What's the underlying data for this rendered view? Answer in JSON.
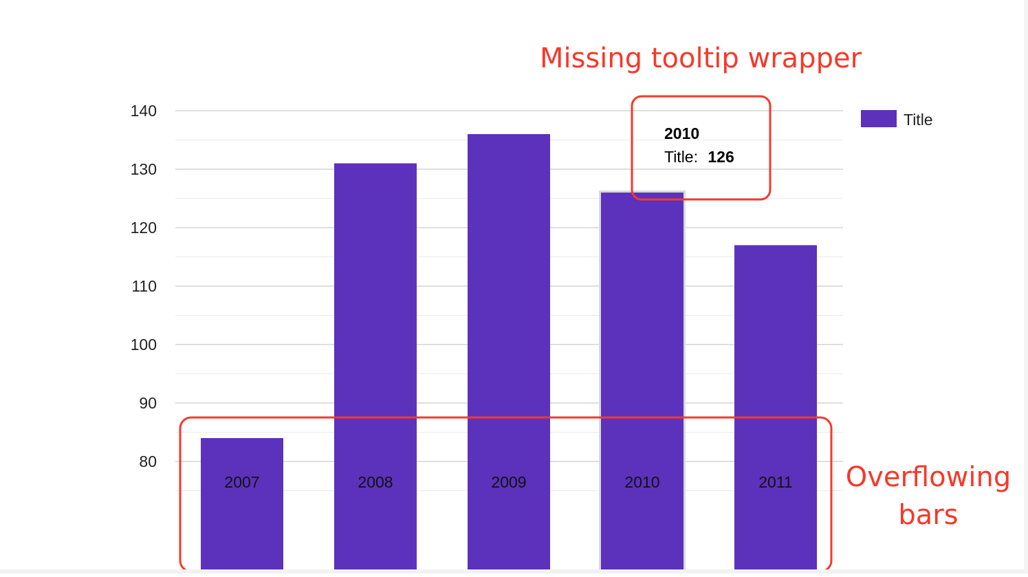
{
  "chart_data": {
    "type": "bar",
    "categories": [
      "2007",
      "2008",
      "2009",
      "2010",
      "2011"
    ],
    "series": [
      {
        "name": "Title",
        "values": [
          84,
          131,
          136,
          126,
          117
        ]
      }
    ],
    "yticks": [
      80,
      90,
      100,
      110,
      120,
      130,
      140
    ],
    "ylim": [
      70,
      140
    ],
    "grid": true,
    "legend": "top-right",
    "colors": {
      "bar": "#5c31bb",
      "gridline": "#cccccc",
      "minor_gridline": "#ebebeb",
      "annotation": "#f5392a"
    },
    "tooltip": {
      "category": "2010",
      "series_label": "Title:",
      "value": "126"
    }
  },
  "annotations": {
    "tooltip_note": "Missing tooltip wrapper",
    "overflow_note_line1": "Overflowing",
    "overflow_note_line2": "bars"
  }
}
